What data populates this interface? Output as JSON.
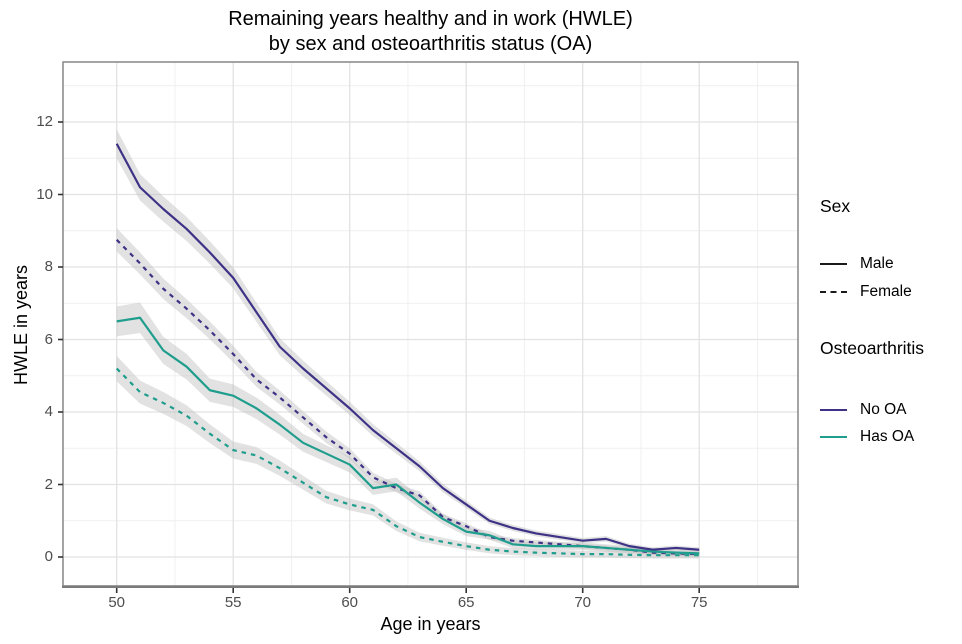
{
  "title": {
    "line1": "Remaining years healthy and in work (HWLE)",
    "line2": "by sex and osteoarthritis status (OA)"
  },
  "x_axis": {
    "label": "Age in years",
    "ticks": [
      50,
      55,
      60,
      65,
      70,
      75
    ],
    "minor_ticks": [
      52.5,
      57.5,
      62.5,
      67.5,
      72.5,
      77.5
    ]
  },
  "y_axis": {
    "label": "HWLE in years",
    "ticks": [
      0,
      2,
      4,
      6,
      8,
      10,
      12
    ],
    "minor_ticks": [
      1,
      3,
      5,
      7,
      9,
      11,
      13
    ]
  },
  "legend": {
    "sex": {
      "title": "Sex",
      "items": [
        {
          "label": "Male",
          "linestyle": "solid"
        },
        {
          "label": "Female",
          "linestyle": "dashed"
        }
      ]
    },
    "osteoarthritis": {
      "title": "Osteoarthritis",
      "items": [
        {
          "label": "No OA",
          "color_key": "no_oa"
        },
        {
          "label": "Has OA",
          "color_key": "has_oa"
        }
      ]
    }
  },
  "colors": {
    "no_oa": "#3d3286",
    "has_oa": "#1f9d8d",
    "legend_key_black": "#1a1a1a",
    "ci_band": "#bfbfbf",
    "grid_major": "#e2e2e2",
    "grid_minor": "#efefef",
    "panel_border": "#8e8e8e",
    "axis_line": "#7a7a7a",
    "tick_mark": "#333333",
    "tick_text": "#4d4d4d"
  },
  "chart_data": {
    "type": "line",
    "title": "Remaining years healthy and in work (HWLE) by sex and osteoarthritis status (OA)",
    "xlabel": "Age in years",
    "ylabel": "HWLE in years",
    "xlim": [
      47.7,
      79.3
    ],
    "ylim": [
      -0.8,
      13.7
    ],
    "x_ticks": [
      50,
      55,
      60,
      65,
      70,
      75
    ],
    "y_ticks": [
      0,
      2,
      4,
      6,
      8,
      10,
      12
    ],
    "grid": true,
    "legend_position": "right",
    "ci_bands": true,
    "x": [
      50,
      51,
      52,
      53,
      54,
      55,
      56,
      57,
      58,
      59,
      60,
      61,
      62,
      63,
      64,
      65,
      66,
      67,
      68,
      69,
      70,
      71,
      72,
      73,
      74,
      75
    ],
    "series": [
      {
        "name": "Male, No OA",
        "sex": "Male",
        "oa": "No OA",
        "linestyle": "solid",
        "color": "#3d3286",
        "values": [
          11.4,
          10.2,
          9.6,
          9.05,
          8.4,
          7.7,
          6.75,
          5.8,
          5.2,
          4.65,
          4.1,
          3.5,
          3.0,
          2.5,
          1.9,
          1.45,
          1.0,
          0.8,
          0.65,
          0.55,
          0.45,
          0.5,
          0.3,
          0.2,
          0.25,
          0.2
        ]
      },
      {
        "name": "Female, No OA",
        "sex": "Female",
        "oa": "No OA",
        "linestyle": "dashed",
        "color": "#3d3286",
        "values": [
          8.75,
          8.1,
          7.4,
          6.85,
          6.25,
          5.6,
          4.9,
          4.4,
          3.85,
          3.3,
          2.85,
          2.2,
          1.9,
          1.7,
          1.1,
          0.85,
          0.55,
          0.45,
          0.4,
          0.35,
          0.3,
          0.25,
          0.2,
          0.12,
          0.1,
          0.08
        ]
      },
      {
        "name": "Male, Has OA",
        "sex": "Male",
        "oa": "Has OA",
        "linestyle": "solid",
        "color": "#1f9d8d",
        "values": [
          6.5,
          6.6,
          5.7,
          5.25,
          4.6,
          4.45,
          4.1,
          3.65,
          3.15,
          2.85,
          2.55,
          1.9,
          2.0,
          1.5,
          1.05,
          0.7,
          0.6,
          0.35,
          0.3,
          0.3,
          0.3,
          0.25,
          0.2,
          0.15,
          0.12,
          0.1
        ]
      },
      {
        "name": "Female, Has OA",
        "sex": "Female",
        "oa": "Has OA",
        "linestyle": "dashed",
        "color": "#1f9d8d",
        "values": [
          5.2,
          4.55,
          4.25,
          3.9,
          3.4,
          2.95,
          2.8,
          2.45,
          2.05,
          1.65,
          1.45,
          1.3,
          0.85,
          0.55,
          0.42,
          0.3,
          0.2,
          0.15,
          0.12,
          0.1,
          0.08,
          0.08,
          0.06,
          0.05,
          0.05,
          0.05
        ]
      }
    ]
  }
}
